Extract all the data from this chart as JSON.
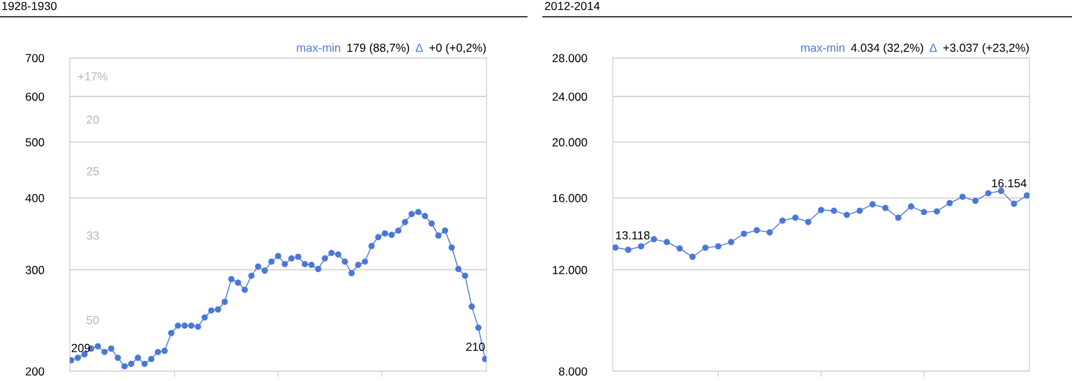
{
  "chart_data": [
    {
      "type": "line",
      "title": "1928-1930",
      "log": true,
      "grid": "y",
      "marker": "circle",
      "ylim": [
        200,
        700
      ],
      "yticks": [
        200,
        300,
        400,
        500,
        600,
        700
      ],
      "categories": [
        null,
        null,
        null,
        null,
        null,
        null,
        null,
        null,
        null,
        null,
        null,
        null,
        null,
        null,
        null,
        null,
        null,
        null,
        null,
        null,
        null,
        null,
        null,
        null,
        null,
        null,
        null,
        null,
        null,
        null,
        null,
        null,
        null,
        null,
        null,
        null,
        null,
        null,
        null,
        null,
        null,
        null,
        null,
        null,
        null,
        null,
        null,
        null,
        null,
        null,
        null,
        null,
        null,
        null,
        null,
        null,
        null,
        null,
        null,
        null,
        null,
        null,
        null
      ],
      "series": [
        {
          "color": "#4a78d6",
          "values": [
            209,
            211,
            214,
            219,
            221,
            216,
            219,
            211,
            204,
            206,
            211,
            206,
            210,
            216,
            217,
            233,
            240,
            240,
            240,
            239,
            248,
            255,
            256,
            264,
            289,
            285,
            277,
            293,
            304,
            299,
            310,
            317,
            307,
            314,
            316,
            307,
            306,
            301,
            314,
            321,
            319,
            310,
            296,
            306,
            310,
            330,
            342,
            347,
            345,
            351,
            363,
            375,
            378,
            372,
            361,
            344,
            351,
            328,
            301,
            293,
            259,
            238,
            210
          ],
          "value_labels": [
            "209",
            null,
            null,
            null,
            null,
            null,
            null,
            null,
            null,
            null,
            null,
            null,
            null,
            null,
            null,
            null,
            null,
            null,
            null,
            null,
            null,
            null,
            null,
            null,
            null,
            null,
            null,
            null,
            null,
            null,
            null,
            null,
            null,
            null,
            null,
            null,
            null,
            null,
            null,
            null,
            null,
            null,
            null,
            null,
            null,
            null,
            null,
            null,
            null,
            null,
            null,
            null,
            null,
            null,
            null,
            null,
            null,
            null,
            null,
            null,
            null,
            null,
            "210"
          ]
        }
      ],
      "annotations": [
        "max-min",
        "179 (88,7%)",
        "Δ",
        "+0 (+0,2%)",
        "+17%",
        "20",
        "25",
        "33",
        "50"
      ]
    },
    {
      "type": "line",
      "title": "2012-2014",
      "log": true,
      "grid": "y",
      "marker": "circle",
      "ylim": [
        8000,
        28000
      ],
      "yticks": [
        {
          "value": 8000,
          "label": "8.000"
        },
        {
          "value": 12000,
          "label": "12.000"
        },
        {
          "value": 16000,
          "label": "16.000"
        },
        {
          "value": 20000,
          "label": "20.000"
        },
        {
          "value": 24000,
          "label": "24.000"
        },
        {
          "value": 28000,
          "label": "28.000"
        }
      ],
      "categories": [
        null,
        null,
        null,
        null,
        null,
        null,
        null,
        null,
        null,
        null,
        null,
        null,
        null,
        null,
        null,
        null,
        null,
        null,
        null,
        null,
        null,
        null,
        null,
        null,
        null,
        null,
        null,
        null,
        null,
        null,
        null,
        null,
        null
      ],
      "series": [
        {
          "color": "#4a78d6",
          "values": [
            13118,
            13000,
            13180,
            13560,
            13410,
            13070,
            12640,
            13110,
            13180,
            13410,
            13860,
            14060,
            13940,
            14610,
            14780,
            14530,
            15240,
            15200,
            14950,
            15200,
            15590,
            15370,
            14780,
            15460,
            15120,
            15160,
            15670,
            16070,
            15810,
            16300,
            16450,
            15630,
            16154
          ],
          "value_labels": [
            "13.118",
            null,
            null,
            null,
            null,
            null,
            null,
            null,
            null,
            null,
            null,
            null,
            null,
            null,
            null,
            null,
            null,
            null,
            null,
            null,
            null,
            null,
            null,
            null,
            null,
            null,
            null,
            null,
            null,
            null,
            null,
            null,
            "16.154"
          ]
        }
      ],
      "annotations": [
        "max-min",
        "4.034 (32,2%)",
        "Δ",
        "+3.037 (+23,2%)"
      ]
    }
  ]
}
